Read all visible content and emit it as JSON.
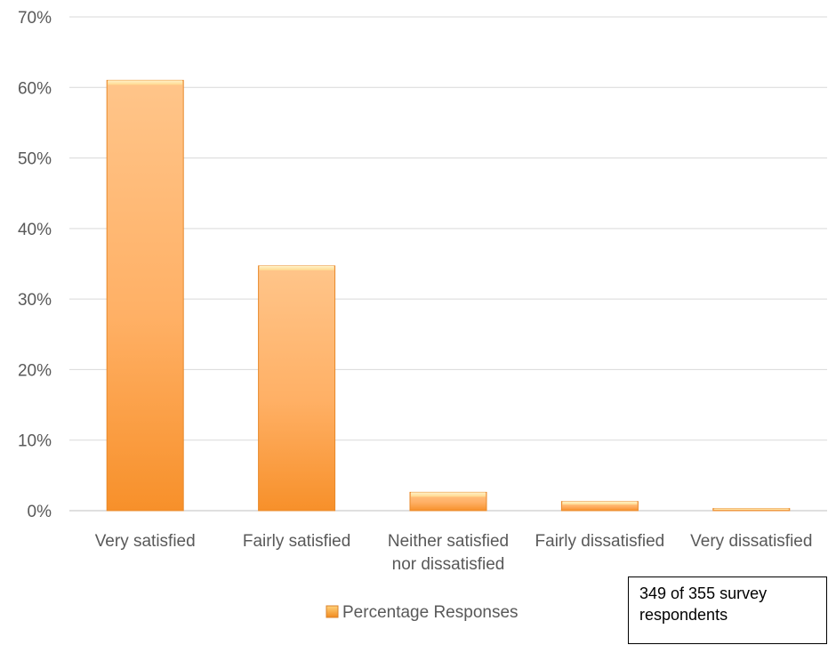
{
  "chart_data": {
    "type": "bar",
    "categories": [
      "Very satisfied",
      "Fairly satisfied",
      "Neither satisfied nor dissatisfied",
      "Fairly dissatisfied",
      "Very dissatisfied"
    ],
    "category_lines": [
      [
        "Very satisfied"
      ],
      [
        "Fairly satisfied"
      ],
      [
        "Neither satisfied",
        "nor dissatisfied"
      ],
      [
        "Fairly dissatisfied"
      ],
      [
        "Very dissatisfied"
      ]
    ],
    "series": [
      {
        "name": "Percentage Responses",
        "values": [
          61,
          34.7,
          2.6,
          1.3,
          0.3
        ]
      }
    ],
    "ylim": [
      0,
      70
    ],
    "yticks": [
      0,
      10,
      20,
      30,
      40,
      50,
      60,
      70
    ],
    "ytick_labels": [
      "0%",
      "10%",
      "20%",
      "30%",
      "40%",
      "50%",
      "60%",
      "70%"
    ],
    "title": "",
    "xlabel": "",
    "ylabel": "",
    "grid": true,
    "legend_position": "bottom",
    "bar_color": "#F7A040"
  },
  "note": {
    "line1": "349 of 355 survey",
    "line2": "respondents"
  }
}
